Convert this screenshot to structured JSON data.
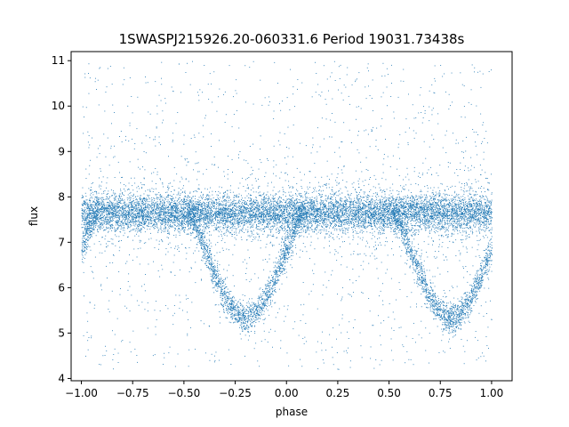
{
  "chart_data": {
    "type": "scatter",
    "title": "1SWASPJ215926.20-060331.6 Period 19031.73438s",
    "xlabel": "phase",
    "ylabel": "flux",
    "xlim": [
      -1.05,
      1.1
    ],
    "ylim": [
      3.95,
      11.2
    ],
    "x_ticks": [
      -1.0,
      -0.75,
      -0.5,
      -0.25,
      0.0,
      0.25,
      0.5,
      0.75,
      1.0
    ],
    "x_tick_labels": [
      "−1.00",
      "−0.75",
      "−0.50",
      "−0.25",
      "0.00",
      "0.25",
      "0.50",
      "0.75",
      "1.00"
    ],
    "y_ticks": [
      4,
      5,
      6,
      7,
      8,
      9,
      10,
      11
    ],
    "y_tick_labels": [
      "4",
      "5",
      "6",
      "7",
      "8",
      "9",
      "10",
      "11"
    ],
    "grid": false,
    "legend": "none",
    "point_color": "#1f77b4",
    "series": [
      {
        "x_range": [
          -1.0,
          1.0
        ],
        "baseline_flux": 7.65,
        "baseline_spread": 0.2,
        "eclipse_minimum_flux": 5.35,
        "eclipse_phases": [
          -0.2,
          0.8
        ],
        "eclipse_half_width": 0.28,
        "scatter_range": [
          4.2,
          11.0
        ]
      }
    ]
  }
}
